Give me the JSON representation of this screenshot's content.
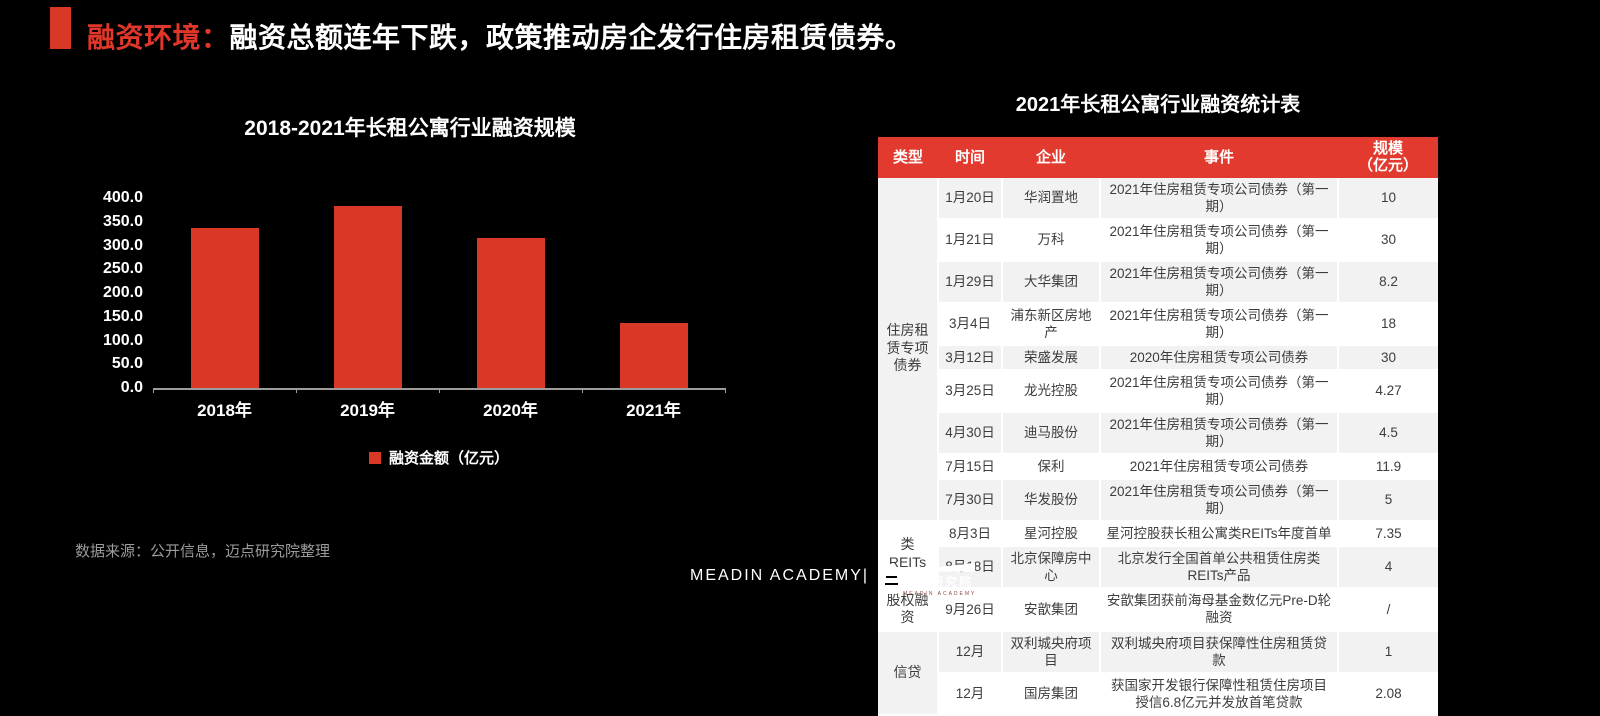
{
  "slide": {
    "title_highlight": "融资环境：",
    "title_rest": "融资总额连年下跌，政策推动房企发行住房租赁债券。",
    "source_note": "数据来源：公开信息，迈点研究院整理",
    "brand_wordmark": "MEADIN ACADEMY|",
    "brand_cn": "迈点研究院",
    "brand_sub": "MEADIN ACADEMY"
  },
  "colors": {
    "accent_red": "#DA3827",
    "table_header_red": "#E23A2E",
    "row_stripe_gray": "#F2F2F2",
    "row_white": "#FFFFFF",
    "axis_gray": "#9C9C9C",
    "body_text": "#3D3D3D",
    "source_gray": "#9B9B9B"
  },
  "chart_data": [
    {
      "type": "bar",
      "title": "2018-2021年长租公寓行业融资规模",
      "categories": [
        "2018年",
        "2019年",
        "2020年",
        "2021年"
      ],
      "series": [
        {
          "name": "融资金额（亿元）",
          "values": [
            336,
            383,
            315,
            136
          ]
        }
      ],
      "xlabel": "",
      "ylabel": "",
      "ylim": [
        0,
        400
      ],
      "ytick_labels": [
        "400.0",
        "350.0",
        "300.0",
        "250.0",
        "200.0",
        "150.0",
        "100.0",
        "50.0",
        "0.0"
      ],
      "grid": false,
      "legend_position": "bottom",
      "bar_color": "#DA3827"
    },
    {
      "type": "table",
      "title": "2021年长租公寓行业融资统计表",
      "columns": [
        "类型",
        "时间",
        "企业",
        "事件",
        "规模\n（亿元）"
      ],
      "rows": [
        {
          "type": "住房租赁专项债券",
          "span": 9,
          "time": "1月20日",
          "company": "华润置地",
          "event": "2021年住房租赁专项公司债券（第一期）",
          "scale": "10"
        },
        {
          "time": "1月21日",
          "company": "万科",
          "event": "2021年住房租赁专项公司债券（第一期）",
          "scale": "30"
        },
        {
          "time": "1月29日",
          "company": "大华集团",
          "event": "2021年住房租赁专项公司债券（第一期）",
          "scale": "8.2"
        },
        {
          "time": "3月4日",
          "company": "浦东新区房地产",
          "event": "2021年住房租赁专项公司债券（第一期）",
          "scale": "18"
        },
        {
          "time": "3月12日",
          "company": "荣盛发展",
          "event": "2020年住房租赁专项公司债券",
          "scale": "30"
        },
        {
          "time": "3月25日",
          "company": "龙光控股",
          "event": "2021年住房租赁专项公司债券（第一期）",
          "scale": "4.27"
        },
        {
          "time": "4月30日",
          "company": "迪马股份",
          "event": "2021年住房租赁专项公司债券（第一期）",
          "scale": "4.5"
        },
        {
          "time": "7月15日",
          "company": "保利",
          "event": "2021年住房租赁专项公司债券",
          "scale": "11.9"
        },
        {
          "time": "7月30日",
          "company": "华发股份",
          "event": "2021年住房租赁专项公司债券（第一期）",
          "scale": "5"
        },
        {
          "type": "类REITs",
          "span": 2,
          "time": "8月3日",
          "company": "星河控股",
          "event": "星河控股获长租公寓类REITs年度首单",
          "scale": "7.35"
        },
        {
          "time": "8月18日",
          "company": "北京保障房中心",
          "event": "北京发行全国首单公共租赁住房类REITs产品",
          "scale": "4"
        },
        {
          "type": "股权融资",
          "span": 1,
          "time": "9月26日",
          "company": "安歆集团",
          "event": "安歆集团获前海母基金数亿元Pre-D轮融资",
          "scale": "/"
        },
        {
          "type": "信贷",
          "span": 2,
          "time": "12月",
          "company": "双利城央府项目",
          "event": "双利城央府项目获保障性住房租赁贷款",
          "scale": "1"
        },
        {
          "time": "12月",
          "company": "国房集团",
          "event": "获国家开发银行保障性租赁住房项目授信6.8亿元并发放首笔贷款",
          "scale": "2.08"
        }
      ]
    }
  ]
}
